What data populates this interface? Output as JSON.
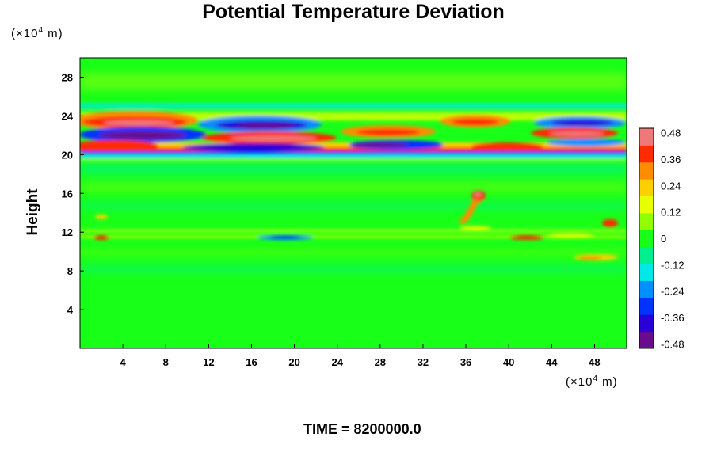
{
  "title": "Potential Temperature Deviation",
  "unit_label": {
    "prefix": "(×10",
    "exp": "4",
    "suffix": " m)"
  },
  "time_label": "TIME = 8200000.0",
  "chart_data": {
    "type": "heatmap",
    "title": "Potential Temperature Deviation",
    "xlabel": "",
    "ylabel": "Height",
    "x_unit": "×10^4 m",
    "y_unit": "×10^4 m",
    "xlim": [
      0,
      51
    ],
    "ylim": [
      0,
      30
    ],
    "x_ticks": [
      4,
      8,
      12,
      16,
      20,
      24,
      28,
      32,
      36,
      40,
      44,
      48
    ],
    "y_ticks": [
      4,
      8,
      12,
      16,
      20,
      24,
      28
    ],
    "colorbar": {
      "vmin": -0.5,
      "vmax": 0.5,
      "ticks": [
        "0.48",
        "0.36",
        "0.24",
        "0.12",
        "0",
        "-0.12",
        "-0.24",
        "-0.36",
        "-0.48"
      ],
      "colors": [
        "#6a0a8c",
        "#2a00d8",
        "#0033ff",
        "#0090ff",
        "#00e8e8",
        "#00f090",
        "#18ff18",
        "#90ff00",
        "#e8ff00",
        "#ffd000",
        "#ff8c00",
        "#ff2a00",
        "#f07878"
      ]
    },
    "features": [
      {
        "x": 7,
        "y": 23.7,
        "value": 0.48
      },
      {
        "x": 7,
        "y": 22.2,
        "value": -0.42
      },
      {
        "x": 19,
        "y": 23.0,
        "value": -0.48
      },
      {
        "x": 19,
        "y": 21.8,
        "value": 0.45
      },
      {
        "x": 30,
        "y": 22.3,
        "value": 0.4
      },
      {
        "x": 30,
        "y": 20.8,
        "value": -0.4
      },
      {
        "x": 38,
        "y": 23.5,
        "value": 0.4
      },
      {
        "x": 47,
        "y": 23.3,
        "value": -0.42
      },
      {
        "x": 47,
        "y": 22.0,
        "value": 0.35
      },
      {
        "x": 37,
        "y": 15.6,
        "value": 0.45
      },
      {
        "x": 19,
        "y": 11.3,
        "value": -0.3
      },
      {
        "x": 48,
        "y": 9.5,
        "value": 0.2
      },
      {
        "x": 50,
        "y": 13.0,
        "value": 0.35
      }
    ]
  }
}
